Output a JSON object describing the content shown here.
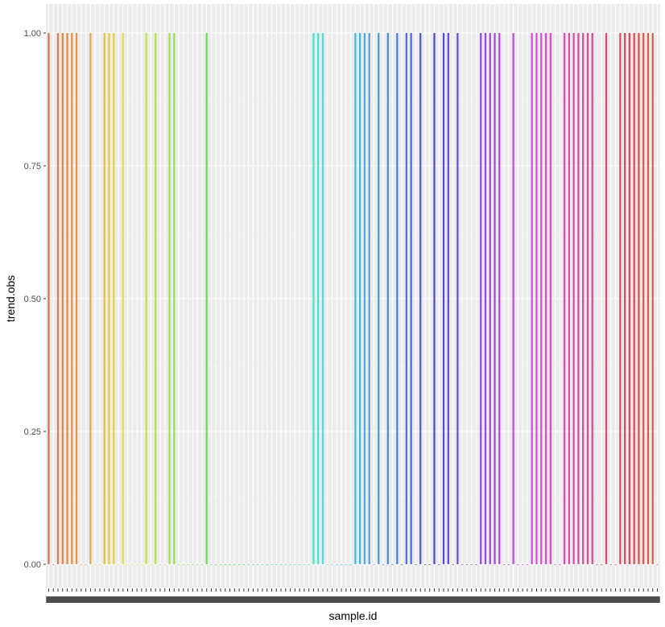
{
  "chart_data": {
    "type": "bar",
    "xlabel": "sample.id",
    "ylabel": "trend.obs",
    "ylim": [
      0,
      1.05
    ],
    "yticks": [
      "0.00",
      "0.25",
      "0.50",
      "0.75",
      "1.00"
    ],
    "ytick_values": [
      0,
      0.25,
      0.5,
      0.75,
      1
    ],
    "n_categories": 132,
    "values": [
      1,
      0,
      1,
      1,
      1,
      1,
      1,
      0,
      0,
      1,
      0,
      0,
      1,
      1,
      1,
      0,
      1,
      0,
      0,
      0,
      0,
      1,
      0,
      1,
      0,
      0,
      1,
      1,
      0,
      0,
      0,
      0,
      0,
      0,
      1,
      0,
      0,
      0,
      0,
      0,
      0,
      0,
      0,
      0,
      0,
      0,
      0,
      0,
      0,
      0,
      0,
      0,
      0,
      0,
      0,
      0,
      0,
      1,
      1,
      1,
      0,
      0,
      0,
      0,
      0,
      0,
      1,
      1,
      1,
      1,
      0,
      1,
      0,
      1,
      0,
      1,
      0,
      1,
      1,
      0,
      1,
      0,
      0,
      1,
      0,
      1,
      1,
      0,
      1,
      0,
      0,
      0,
      0,
      1,
      1,
      1,
      1,
      1,
      0,
      0,
      1,
      0,
      0,
      0,
      1,
      1,
      1,
      1,
      1,
      0,
      0,
      1,
      1,
      1,
      1,
      1,
      1,
      1,
      0,
      0,
      1,
      0,
      0,
      1,
      1,
      1,
      1,
      1,
      1,
      1,
      1,
      0
    ],
    "grid": true,
    "legend": "none"
  }
}
